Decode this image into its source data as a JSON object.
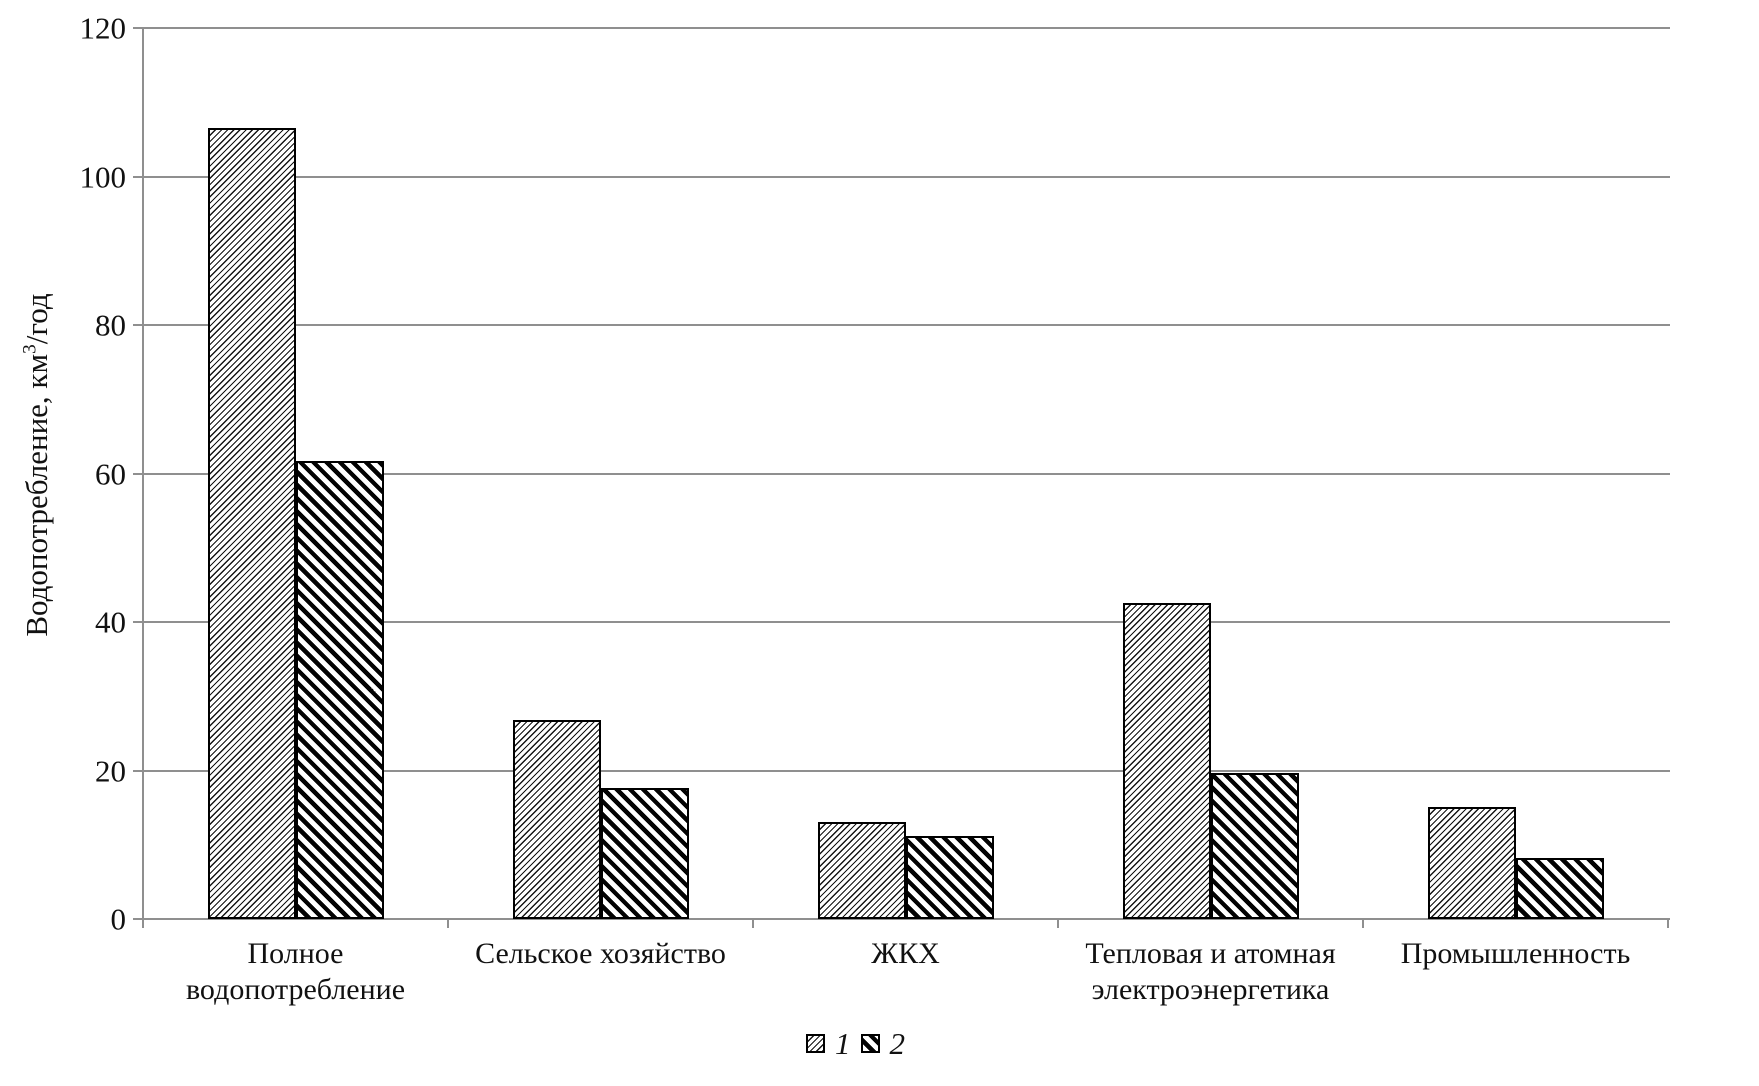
{
  "chart_data": {
    "type": "bar",
    "title": "",
    "ylabel_prefix": "Водопотребление, км",
    "ylabel_sup": "3",
    "ylabel_suffix": "/год",
    "xlabel": "",
    "categories": [
      "Полное водопотребление",
      "Сельское хозяйство",
      "ЖКХ",
      "Тепловая и атомная электроэнергетика",
      "Промышленность"
    ],
    "series": [
      {
        "name": "1",
        "pattern": "thin-forward-diagonal-hatch",
        "values": [
          106.5,
          26.8,
          13.0,
          42.5,
          15.1
        ]
      },
      {
        "name": "2",
        "pattern": "thick-backward-diagonal-hatch",
        "values": [
          61.7,
          17.6,
          11.2,
          19.7,
          8.2
        ]
      }
    ],
    "ylim": [
      0,
      120
    ],
    "yticks": [
      0,
      20,
      40,
      60,
      80,
      100,
      120
    ],
    "grid": "horizontal",
    "legend_position": "bottom-center",
    "colors": {
      "grid": "#8f8f8f",
      "axis": "#8f8f8f",
      "bar_outline": "#000000",
      "bar_fill": "#ffffff",
      "text": "#111111",
      "background": "#ffffff"
    }
  },
  "legend": {
    "items": [
      {
        "label": "1"
      },
      {
        "label": "2"
      }
    ]
  }
}
